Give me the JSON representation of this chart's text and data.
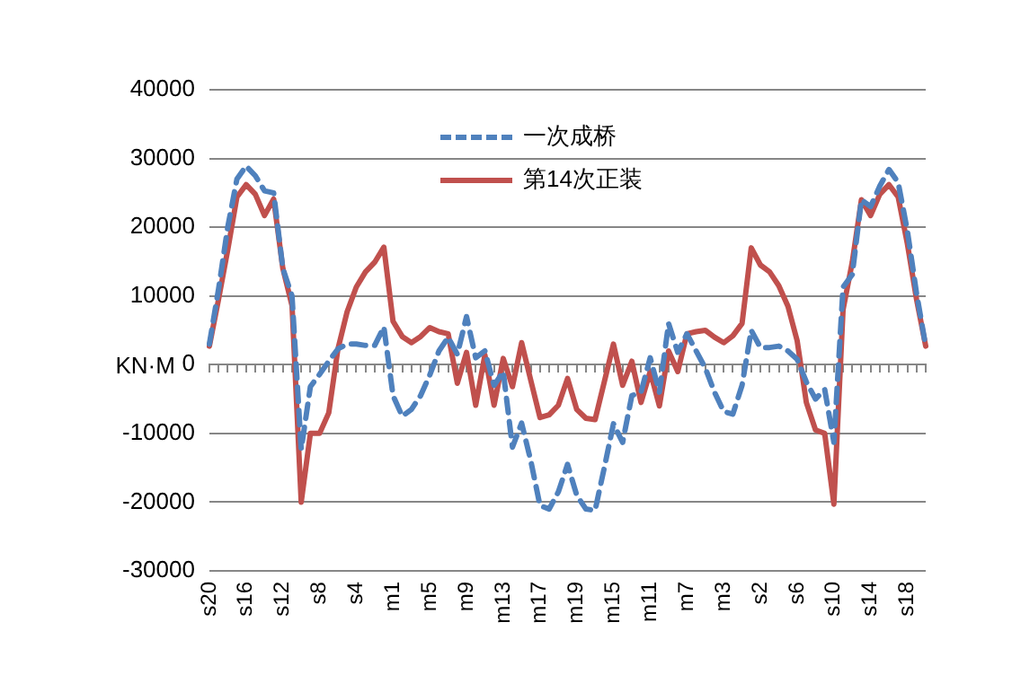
{
  "chart_data": {
    "type": "line",
    "ylabel": "KN·M",
    "categories": [
      "s20",
      null,
      null,
      null,
      "s16",
      null,
      null,
      null,
      "s12",
      null,
      null,
      null,
      "s8",
      null,
      null,
      null,
      "s4",
      null,
      null,
      null,
      "m1",
      null,
      null,
      null,
      "m5",
      null,
      null,
      null,
      "m9",
      null,
      null,
      null,
      "m13",
      null,
      null,
      null,
      "m17",
      null,
      null,
      null,
      "m19",
      null,
      null,
      null,
      "m15",
      null,
      null,
      null,
      "m11",
      null,
      null,
      null,
      "m7",
      null,
      null,
      null,
      "m3",
      null,
      null,
      null,
      "s2",
      null,
      null,
      null,
      "s6",
      null,
      null,
      null,
      "s10",
      null,
      null,
      null,
      "s14",
      null,
      null,
      null,
      "s18",
      null,
      null
    ],
    "series": [
      {
        "name": "一次成桥",
        "color": "#4f81bd",
        "line_style": "dashed",
        "values": [
          3000,
          11000,
          20000,
          27000,
          28900,
          27500,
          25300,
          25000,
          14000,
          10000,
          -12300,
          -3200,
          -1400,
          500,
          2300,
          3000,
          3000,
          2800,
          2800,
          5500,
          -4500,
          -7500,
          -6500,
          -4500,
          -1500,
          2000,
          4000,
          1500,
          7000,
          1000,
          2000,
          -3000,
          -1000,
          -12000,
          -8500,
          -14000,
          -20500,
          -21000,
          -18500,
          -14500,
          -19000,
          -21000,
          -21200,
          -15000,
          -8600,
          -11300,
          -4500,
          -4000,
          1000,
          -4000,
          6000,
          1800,
          4500,
          2000,
          -500,
          -4000,
          -6800,
          -7200,
          -3000,
          5000,
          2500,
          2500,
          2700,
          2000,
          800,
          -2500,
          -5000,
          -3600,
          -11300,
          11300,
          13100,
          24000,
          23000,
          26000,
          28400,
          26500,
          19500,
          10400,
          2700
        ]
      },
      {
        "name": "第14次正装",
        "color": "#c0504d",
        "line_style": "solid",
        "values": [
          2700,
          9500,
          16700,
          24400,
          26200,
          24800,
          21700,
          24100,
          14000,
          8600,
          -20000,
          -10000,
          -10000,
          -7000,
          2300,
          7700,
          11300,
          13500,
          14900,
          17100,
          6300,
          4100,
          3200,
          4100,
          5400,
          4800,
          4500,
          -2700,
          1800,
          -5900,
          1400,
          -5900,
          900,
          -3200,
          3200,
          -2300,
          -7700,
          -7300,
          -5900,
          -2000,
          -6500,
          -7800,
          -8000,
          -2500,
          3000,
          -3000,
          500,
          -5500,
          -1000,
          -6000,
          2000,
          -1000,
          4500,
          4800,
          5000,
          4000,
          3200,
          4200,
          6000,
          17000,
          14500,
          13500,
          11500,
          8500,
          3500,
          -5500,
          -9500,
          -10000,
          -20300,
          8000,
          14900,
          24000,
          21700,
          24800,
          26200,
          24400,
          17600,
          9500,
          2700
        ]
      }
    ],
    "ylim": [
      -30000,
      40000
    ],
    "yticks": [
      -30000,
      -20000,
      -10000,
      0,
      10000,
      20000,
      30000,
      40000
    ],
    "grid": "y",
    "legend": "top",
    "marker": "none"
  }
}
